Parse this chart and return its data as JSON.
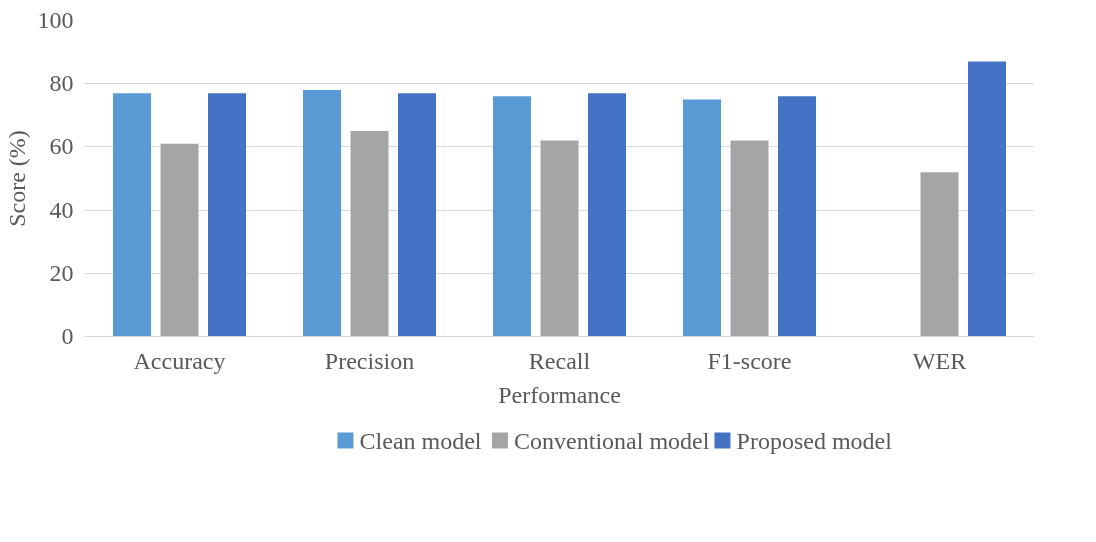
{
  "chart_data": {
    "type": "bar",
    "xlabel": "Performance",
    "ylabel": "Score (%)",
    "categories": [
      "Accuracy",
      "Precision",
      "Recall",
      "F1-score",
      "WER"
    ],
    "series": [
      {
        "name": "Clean model",
        "color": "#5b9bd5",
        "values": [
          77,
          78,
          76,
          75,
          null
        ]
      },
      {
        "name": "Conventional model",
        "color": "#a5a5a5",
        "values": [
          61,
          65,
          62,
          62,
          52
        ]
      },
      {
        "name": "Proposed model",
        "color": "#4472c4",
        "values": [
          77,
          77,
          77,
          76,
          87
        ]
      }
    ],
    "ylim": [
      0,
      100
    ],
    "yticks": [
      0,
      20,
      40,
      60,
      80,
      100
    ],
    "grid": "y",
    "legend": "bottom"
  }
}
